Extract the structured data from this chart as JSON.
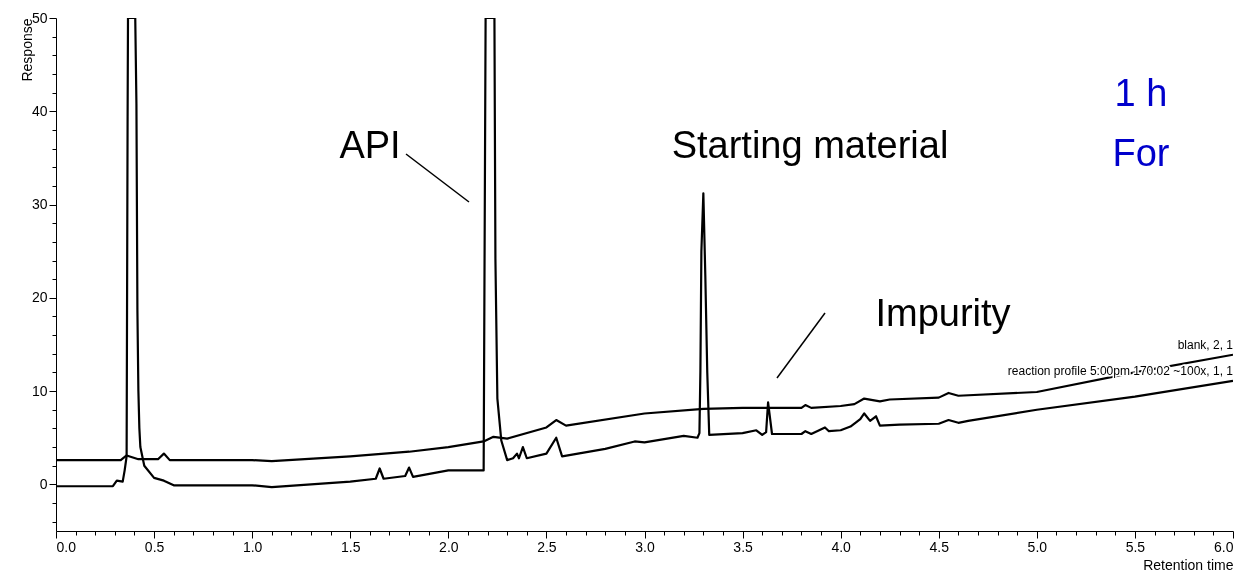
{
  "chart_data": {
    "type": "line",
    "xlabel": "Retention time",
    "ylabel": "Response",
    "xlim": [
      0,
      6
    ],
    "ylim": [
      -5,
      50
    ],
    "xticks": [
      {
        "value": 0,
        "label": "0.0"
      },
      {
        "value": 0.1,
        "label": null
      },
      {
        "value": 0.2,
        "label": null
      },
      {
        "value": 0.3,
        "label": null
      },
      {
        "value": 0.4,
        "label": null
      },
      0.5,
      {
        "value": 0.6,
        "label": null
      },
      {
        "value": 0.7,
        "label": null
      },
      {
        "value": 0.8,
        "label": null
      },
      {
        "value": 0.9,
        "label": null
      },
      {
        "value": 1,
        "label": "1.0"
      },
      {
        "value": 1.1,
        "label": null
      },
      {
        "value": 1.2,
        "label": null
      },
      {
        "value": 1.3,
        "label": null
      },
      {
        "value": 1.4,
        "label": null
      },
      1.5,
      {
        "value": 1.6,
        "label": null
      },
      {
        "value": 1.7,
        "label": null
      },
      {
        "value": 1.8,
        "label": null
      },
      {
        "value": 1.9,
        "label": null
      },
      {
        "value": 2,
        "label": "2.0"
      },
      {
        "value": 2.1,
        "label": null
      },
      {
        "value": 2.2,
        "label": null
      },
      {
        "value": 2.3,
        "label": null
      },
      {
        "value": 2.4,
        "label": null
      },
      2.5,
      {
        "value": 2.6,
        "label": null
      },
      {
        "value": 2.7,
        "label": null
      },
      {
        "value": 2.8,
        "label": null
      },
      {
        "value": 2.9,
        "label": null
      },
      {
        "value": 3,
        "label": "3.0"
      },
      {
        "value": 3.1,
        "label": null
      },
      {
        "value": 3.2,
        "label": null
      },
      {
        "value": 3.3,
        "label": null
      },
      {
        "value": 3.4,
        "label": null
      },
      3.5,
      {
        "value": 3.6,
        "label": null
      },
      {
        "value": 3.7,
        "label": null
      },
      {
        "value": 3.8,
        "label": null
      },
      {
        "value": 3.9,
        "label": null
      },
      {
        "value": 4,
        "label": "4.0"
      },
      {
        "value": 4.1,
        "label": null
      },
      {
        "value": 4.2,
        "label": null
      },
      {
        "value": 4.3,
        "label": null
      },
      {
        "value": 4.4,
        "label": null
      },
      4.5,
      {
        "value": 4.6,
        "label": null
      },
      {
        "value": 4.7,
        "label": null
      },
      {
        "value": 4.8,
        "label": null
      },
      {
        "value": 4.9,
        "label": null
      },
      {
        "value": 5,
        "label": "5.0"
      },
      {
        "value": 5.1,
        "label": null
      },
      {
        "value": 5.2,
        "label": null
      },
      {
        "value": 5.3,
        "label": null
      },
      {
        "value": 5.4,
        "label": null
      },
      5.5,
      {
        "value": 5.6,
        "label": null
      },
      {
        "value": 5.7,
        "label": null
      },
      {
        "value": 5.8,
        "label": null
      },
      {
        "value": 5.9,
        "label": null
      },
      {
        "value": 6,
        "label": "6.0"
      }
    ],
    "yticks": [
      {
        "value": -4,
        "label": null
      },
      {
        "value": -2,
        "label": null
      },
      0,
      {
        "value": 2,
        "label": null
      },
      {
        "value": 4,
        "label": null
      },
      {
        "value": 6,
        "label": null
      },
      {
        "value": 8,
        "label": null
      },
      10,
      {
        "value": 12,
        "label": null
      },
      {
        "value": 14,
        "label": null
      },
      {
        "value": 16,
        "label": null
      },
      {
        "value": 18,
        "label": null
      },
      20,
      {
        "value": 22,
        "label": null
      },
      {
        "value": 24,
        "label": null
      },
      {
        "value": 26,
        "label": null
      },
      {
        "value": 28,
        "label": null
      },
      30,
      {
        "value": 32,
        "label": null
      },
      {
        "value": 34,
        "label": null
      },
      {
        "value": 36,
        "label": null
      },
      {
        "value": 38,
        "label": null
      },
      40,
      {
        "value": 42,
        "label": null
      },
      {
        "value": 44,
        "label": null
      },
      {
        "value": 46,
        "label": null
      },
      {
        "value": 48,
        "label": null
      },
      50
    ],
    "grid": false,
    "marker": "none",
    "line_style": "solid",
    "series": [
      {
        "name": "blank, 2, 1",
        "color": "#000000",
        "x": [
          0,
          0.33,
          0.36,
          0.42,
          0.52,
          0.55,
          0.58,
          1.0,
          1.1,
          1.5,
          1.8,
          2.0,
          2.18,
          2.23,
          2.3,
          2.5,
          2.55,
          2.6,
          3.0,
          3.3,
          3.5,
          3.8,
          3.82,
          3.85,
          4.0,
          4.07,
          4.12,
          4.2,
          4.25,
          4.5,
          4.55,
          4.6,
          5.0,
          5.5,
          6.0
        ],
        "values": [
          2.6,
          2.6,
          3.1,
          2.7,
          2.7,
          3.3,
          2.6,
          2.6,
          2.5,
          3.0,
          3.5,
          4.0,
          4.6,
          5.1,
          4.9,
          6.1,
          6.9,
          6.3,
          7.6,
          8.1,
          8.2,
          8.2,
          8.5,
          8.2,
          8.4,
          8.6,
          9.2,
          8.9,
          9.1,
          9.3,
          9.8,
          9.5,
          9.9,
          12.0,
          13.9
        ]
      },
      {
        "name": "reaction profile 5:00pm 170.02 ~100x, 1, 1",
        "color": "#000000",
        "x": [
          0,
          0.29,
          0.31,
          0.34,
          0.35,
          0.36,
          0.365,
          0.367,
          0.404,
          0.41,
          0.415,
          0.42,
          0.425,
          0.43,
          0.45,
          0.5,
          0.55,
          0.6,
          1.0,
          1.1,
          1.5,
          1.63,
          1.65,
          1.67,
          1.78,
          1.8,
          1.82,
          2.0,
          2.18,
          2.19,
          2.235,
          2.24,
          2.25,
          2.27,
          2.3,
          2.33,
          2.35,
          2.36,
          2.38,
          2.4,
          2.5,
          2.55,
          2.58,
          2.8,
          2.95,
          3.0,
          3.2,
          3.27,
          3.28,
          3.285,
          3.29,
          3.3,
          3.31,
          3.32,
          3.33,
          3.5,
          3.57,
          3.6,
          3.62,
          3.63,
          3.65,
          3.8,
          3.82,
          3.85,
          3.92,
          3.94,
          4.0,
          4.05,
          4.1,
          4.12,
          4.15,
          4.18,
          4.2,
          4.3,
          4.5,
          4.55,
          4.6,
          4.65,
          5.0,
          5.5,
          6.0
        ],
        "values": [
          -0.2,
          -0.2,
          0.4,
          0.3,
          1.5,
          3.0,
          39.4,
          50,
          50,
          40.8,
          18.6,
          10.0,
          6.0,
          4.0,
          2.0,
          0.7,
          0.4,
          -0.1,
          -0.1,
          -0.3,
          0.3,
          0.6,
          1.7,
          0.6,
          0.9,
          1.8,
          0.8,
          1.5,
          1.5,
          50,
          50,
          24.2,
          9.2,
          4.7,
          2.6,
          2.8,
          3.3,
          2.8,
          4.0,
          2.8,
          3.3,
          5.0,
          3.0,
          3.8,
          4.6,
          4.5,
          5.2,
          5.0,
          5.5,
          12.2,
          25.0,
          31.2,
          22.4,
          12.0,
          5.3,
          5.5,
          5.8,
          5.3,
          5.6,
          8.8,
          5.4,
          5.4,
          5.7,
          5.4,
          6.1,
          5.7,
          5.8,
          6.2,
          7.0,
          7.6,
          6.8,
          7.3,
          6.3,
          6.4,
          6.5,
          6.9,
          6.6,
          6.8,
          8.0,
          9.4,
          11.1
        ]
      }
    ],
    "annotations": [
      "API",
      "Starting material",
      "Impurity",
      "1 h",
      "For"
    ]
  }
}
